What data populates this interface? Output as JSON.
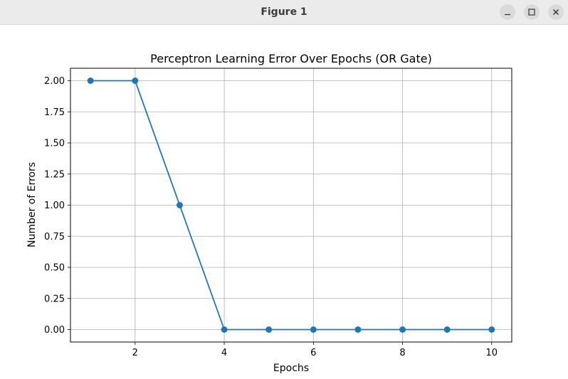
{
  "window": {
    "title": "Figure 1",
    "buttons": {
      "minimize": "minimize-icon",
      "maximize": "maximize-icon",
      "close": "close-icon"
    }
  },
  "chart_data": {
    "type": "line",
    "title": "Perceptron Learning Error Over Epochs (OR Gate)",
    "xlabel": "Epochs",
    "ylabel": "Number of Errors",
    "x": [
      1,
      2,
      3,
      4,
      5,
      6,
      7,
      8,
      9,
      10
    ],
    "series": [
      {
        "values": [
          2,
          2,
          1,
          0,
          0,
          0,
          0,
          0,
          0,
          0
        ],
        "color": "#1f77b4",
        "marker": "circle"
      }
    ],
    "xlim": [
      0.55,
      10.45
    ],
    "ylim": [
      -0.1,
      2.1
    ],
    "xticks": [
      2,
      4,
      6,
      8,
      10
    ],
    "xtick_labels": [
      "2",
      "4",
      "6",
      "8",
      "10"
    ],
    "yticks": [
      0,
      0.25,
      0.5,
      0.75,
      1,
      1.25,
      1.5,
      1.75,
      2
    ],
    "ytick_labels": [
      "0.00",
      "0.25",
      "0.50",
      "0.75",
      "1.00",
      "1.25",
      "1.50",
      "1.75",
      "2.00"
    ],
    "grid": true,
    "legend": "none"
  }
}
